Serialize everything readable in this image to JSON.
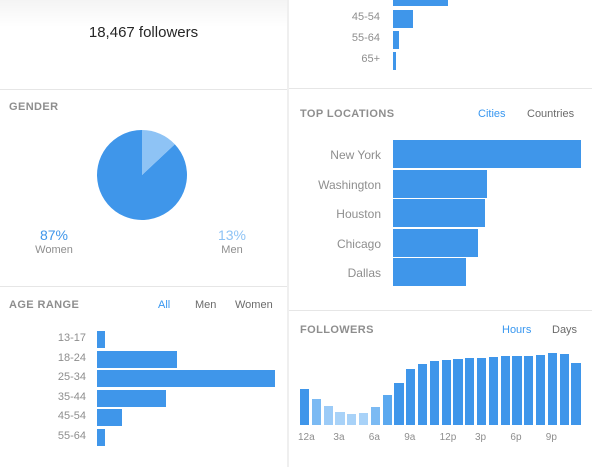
{
  "header": {
    "followers_label": "18,467 followers"
  },
  "gender": {
    "title": "GENDER",
    "women": {
      "pct": "87%",
      "label": "Women",
      "value": 87,
      "color": "#3f96ea"
    },
    "men": {
      "pct": "13%",
      "label": "Men",
      "value": 13,
      "color": "#8ec3f5"
    }
  },
  "age_range": {
    "title": "AGE RANGE",
    "tabs": [
      "All",
      "Men",
      "Women"
    ],
    "active_tab": "All",
    "chart_data": {
      "type": "bar",
      "orientation": "horizontal",
      "categories": [
        "13-17",
        "18-24",
        "25-34",
        "35-44",
        "45-54",
        "55-64",
        "65+"
      ],
      "values": [
        4,
        42,
        93,
        36,
        13,
        4,
        2
      ]
    }
  },
  "top_locations": {
    "title": "TOP LOCATIONS",
    "tabs": [
      "Cities",
      "Countries"
    ],
    "active_tab": "Cities",
    "chart_data": {
      "type": "bar",
      "orientation": "horizontal",
      "categories": [
        "New York",
        "Washington",
        "Houston",
        "Chicago",
        "Dallas"
      ],
      "values": [
        100,
        50,
        49,
        45,
        39
      ]
    }
  },
  "followers": {
    "title": "FOLLOWERS",
    "tabs": [
      "Hours",
      "Days"
    ],
    "active_tab": "Hours",
    "chart_data": {
      "type": "bar",
      "x_ticks": [
        "12a",
        "3a",
        "6a",
        "9a",
        "12p",
        "3p",
        "6p",
        "9p"
      ],
      "values": [
        53,
        38,
        28,
        19,
        16,
        18,
        26,
        44,
        61,
        81,
        89,
        93,
        95,
        96,
        97,
        98,
        99,
        100,
        100,
        100,
        102,
        105,
        104,
        91
      ],
      "colors": [
        "#3f96ea",
        "#7bbaf3",
        "#9ccbf7",
        "#a8d2f8",
        "#a8d2f8",
        "#a8d2f8",
        "#7bbaf3",
        "#5aa8ef",
        "#3f96ea",
        "#3f96ea",
        "#3f96ea",
        "#3f96ea",
        "#3f96ea",
        "#3f96ea",
        "#3f96ea",
        "#3f96ea",
        "#3f96ea",
        "#3f96ea",
        "#3f96ea",
        "#3f96ea",
        "#3f96ea",
        "#3f96ea",
        "#3f96ea",
        "#3f96ea"
      ]
    }
  }
}
